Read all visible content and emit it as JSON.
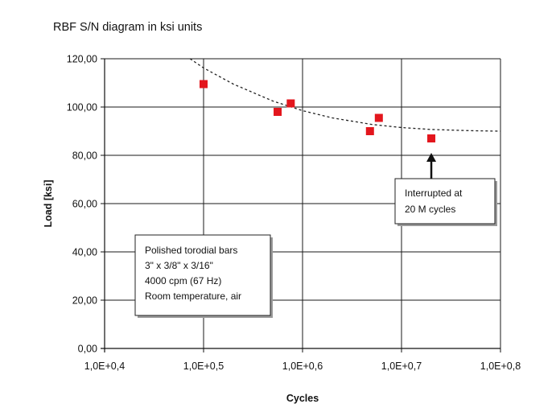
{
  "chart_data": {
    "type": "scatter",
    "title": "RBF S/N diagram in ksi units",
    "xlabel": "Cycles",
    "ylabel": "Load [ksi]",
    "x_scale": "log10",
    "xlim": [
      10000,
      100000000
    ],
    "ylim": [
      0,
      120
    ],
    "x_ticks": [
      10000,
      100000,
      1000000,
      10000000,
      100000000
    ],
    "x_tick_labels": [
      "1,0E+0,4",
      "1,0E+0,5",
      "1,0E+0,6",
      "1,0E+0,7",
      "1,0E+0,8"
    ],
    "y_ticks": [
      0,
      20,
      40,
      60,
      80,
      100,
      120
    ],
    "y_tick_labels": [
      "0,00",
      "20,00",
      "40,00",
      "60,00",
      "80,00",
      "100,00",
      "120,00"
    ],
    "grid": true,
    "series": [
      {
        "marker": "square",
        "color": "#e3161d",
        "x": [
          100000,
          560000,
          760000,
          4800000,
          5900000,
          20000000
        ],
        "y": [
          109.5,
          98.0,
          101.5,
          90.0,
          95.5,
          87.0
        ]
      }
    ],
    "trendline": {
      "style": "dashed",
      "color": "#222222",
      "x": [
        70000,
        100000,
        200000,
        500000,
        1000000,
        2000000,
        5000000,
        10000000,
        20000000,
        50000000,
        100000000
      ],
      "y": [
        120.5,
        116.2,
        109.5,
        102.5,
        98.5,
        95.5,
        92.8,
        91.5,
        90.7,
        90.2,
        90.0
      ]
    },
    "annotations": [
      {
        "lines": [
          "Interrupted at",
          "20 M cycles"
        ],
        "arrow_to": {
          "x": 20000000,
          "y": 81
        }
      },
      {
        "lines": [
          "Polished torodial bars",
          "3\" x  3/8\" x 3/16\"",
          "4000 cpm (67 Hz)",
          "Room temperature, air"
        ]
      }
    ]
  }
}
